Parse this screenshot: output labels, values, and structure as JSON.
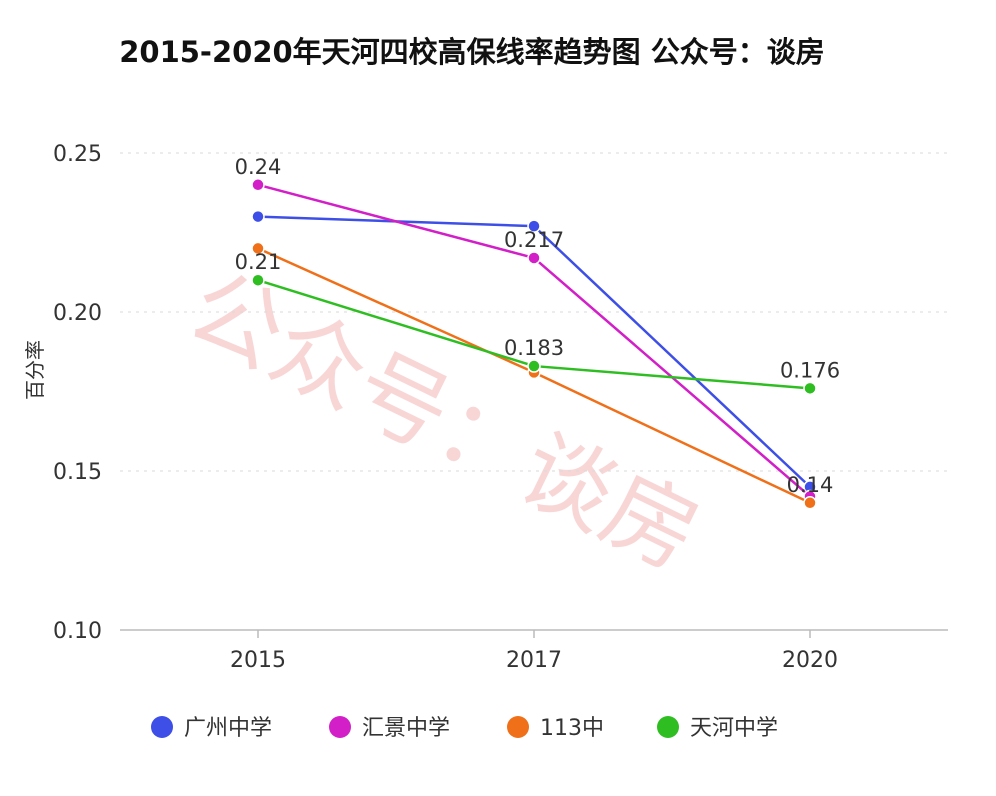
{
  "chart_data": {
    "type": "line",
    "title": "2015-2020年天河四校高保线率趋势图 公众号：谈房",
    "ylabel": "百分率",
    "xlabel": "",
    "x": [
      "2015",
      "2017",
      "2020"
    ],
    "ylim": [
      0.1,
      0.25
    ],
    "yticks": [
      "0.10",
      "0.15",
      "0.20",
      "0.25"
    ],
    "ytick_values": [
      0.1,
      0.15,
      0.2,
      0.25
    ],
    "grid": true,
    "legend_position": "bottom",
    "series": [
      {
        "name": "广州中学",
        "color": "#3d4fe6",
        "values": [
          0.23,
          0.227,
          0.145
        ],
        "labels": [
          "",
          "",
          ""
        ]
      },
      {
        "name": "汇景中学",
        "color": "#d21fc8",
        "values": [
          0.24,
          0.217,
          0.142
        ],
        "labels": [
          "0.24",
          "0.217",
          ""
        ]
      },
      {
        "name": "113中",
        "color": "#f07019",
        "values": [
          0.22,
          0.181,
          0.14
        ],
        "labels": [
          "",
          "",
          "0.14"
        ]
      },
      {
        "name": "天河中学",
        "color": "#2fbe22",
        "values": [
          0.21,
          0.183,
          0.176
        ],
        "labels": [
          "0.21",
          "0.183",
          "0.176"
        ]
      }
    ]
  },
  "watermark": {
    "text": "公众号：谈房"
  }
}
